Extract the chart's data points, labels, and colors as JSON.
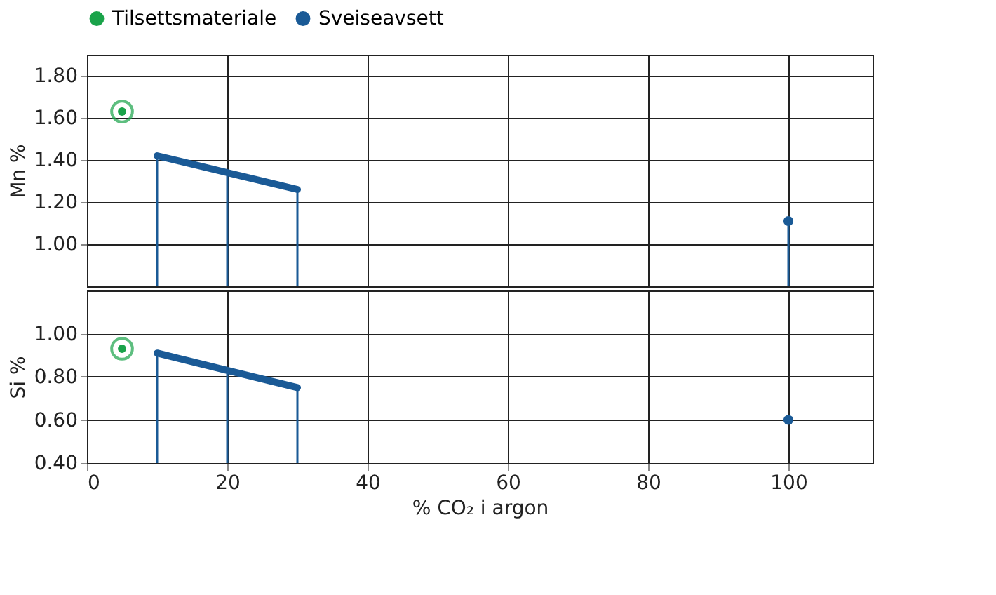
{
  "chart_data": [
    {
      "type": "line",
      "ylabel": "Mn %",
      "xlim": [
        0,
        112
      ],
      "xticks": [
        0,
        20,
        40,
        60,
        80,
        100
      ],
      "ylim": [
        0.8,
        1.9
      ],
      "yticks": [
        {
          "value": 1.0,
          "label": "1.00"
        },
        {
          "value": 1.2,
          "label": "1.20"
        },
        {
          "value": 1.4,
          "label": "1.40"
        },
        {
          "value": 1.6,
          "label": "1.60"
        },
        {
          "value": 1.8,
          "label": "1.80"
        }
      ],
      "grid": true,
      "legend": "top left",
      "tick_labels": "y",
      "series": [
        {
          "name": "Tilsettsmateriale",
          "type": "scatter",
          "marker": "circle",
          "color": "#1aa34a",
          "x": [
            5
          ],
          "values": [
            1.63
          ]
        },
        {
          "color": "#1a5a96",
          "x": [
            10,
            20,
            30
          ],
          "values": [
            1.42,
            1.34,
            1.26
          ],
          "errors": [
            [
              0.8,
              1.42
            ],
            [
              0.8,
              1.34
            ],
            [
              0.8,
              1.26
            ]
          ]
        },
        {
          "name": "Sveiseavsett",
          "type": "lollipop",
          "color": "#1a5a96",
          "x": [
            100
          ],
          "values": [
            1.11
          ]
        }
      ]
    },
    {
      "type": "line",
      "ylabel": "Si %",
      "xlabel": "% CO₂ i argon",
      "xlim": [
        0,
        112
      ],
      "xticks": [
        0,
        20,
        40,
        60,
        80,
        100
      ],
      "ylim": [
        0.4,
        1.2
      ],
      "yticks": [
        {
          "value": 0.4,
          "label": "0.40"
        },
        {
          "value": 0.6,
          "label": "0.60"
        },
        {
          "value": 0.8,
          "label": "0.80"
        },
        {
          "value": 1.0,
          "label": "1.00"
        }
      ],
      "grid": true,
      "series": [
        {
          "type": "scatter",
          "marker": "circle",
          "color": "#1aa34a",
          "x": [
            5
          ],
          "values": [
            0.93
          ]
        },
        {
          "color": "#1a5a96",
          "x": [
            10,
            20,
            30
          ],
          "values": [
            0.91,
            0.83,
            0.75
          ],
          "errors": [
            [
              0.4,
              0.91
            ],
            [
              0.4,
              0.83
            ],
            [
              0.4,
              0.75
            ]
          ]
        },
        {
          "type": "scatter",
          "color": "#1a5a96",
          "x": [
            100
          ],
          "values": [
            0.6
          ]
        }
      ]
    }
  ]
}
